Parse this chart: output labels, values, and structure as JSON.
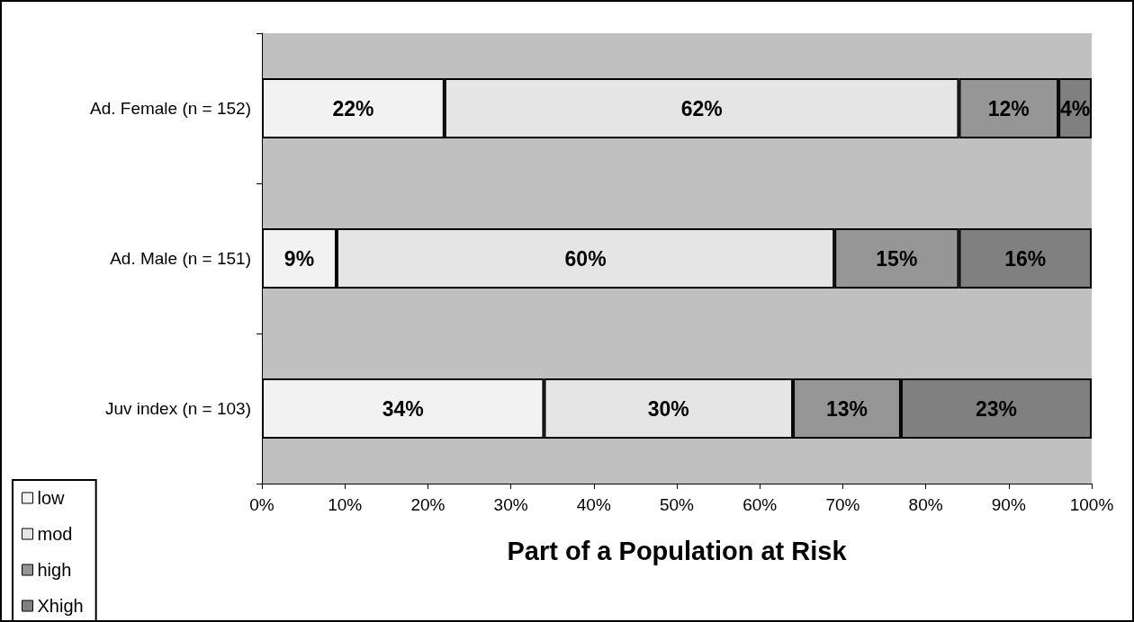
{
  "chart_data": {
    "type": "bar",
    "orientation": "horizontal",
    "stacked": true,
    "categories": [
      "Ad. Female (n = 152)",
      "Ad. Male (n = 151)",
      "Juv index (n = 103)"
    ],
    "series": [
      {
        "name": "low",
        "color": "#f2f2f2",
        "values": [
          22,
          9,
          34
        ],
        "value_labels": [
          "22%",
          "9%",
          "34%"
        ]
      },
      {
        "name": "mod",
        "color": "#e5e5e5",
        "values": [
          62,
          60,
          30
        ],
        "value_labels": [
          "62%",
          "60%",
          "30%"
        ]
      },
      {
        "name": "high",
        "color": "#969696",
        "values": [
          12,
          15,
          13
        ],
        "value_labels": [
          "12%",
          "15%",
          "13%"
        ]
      },
      {
        "name": "Xhigh",
        "color": "#808080",
        "values": [
          4,
          16,
          23
        ],
        "value_labels": [
          "4%",
          "16%",
          "23%"
        ]
      }
    ],
    "xlim": [
      0,
      100
    ],
    "xticks": [
      {
        "value": 0,
        "label": "0%"
      },
      {
        "value": 10,
        "label": "10%"
      },
      {
        "value": 20,
        "label": "20%"
      },
      {
        "value": 30,
        "label": "30%"
      },
      {
        "value": 40,
        "label": "40%"
      },
      {
        "value": 50,
        "label": "50%"
      },
      {
        "value": 60,
        "label": "60%"
      },
      {
        "value": 70,
        "label": "70%"
      },
      {
        "value": 80,
        "label": "80%"
      },
      {
        "value": 90,
        "label": "90%"
      },
      {
        "value": 100,
        "label": "100%"
      }
    ],
    "xlabel": "Part of a Population at Risk",
    "legend": "bottom left"
  }
}
